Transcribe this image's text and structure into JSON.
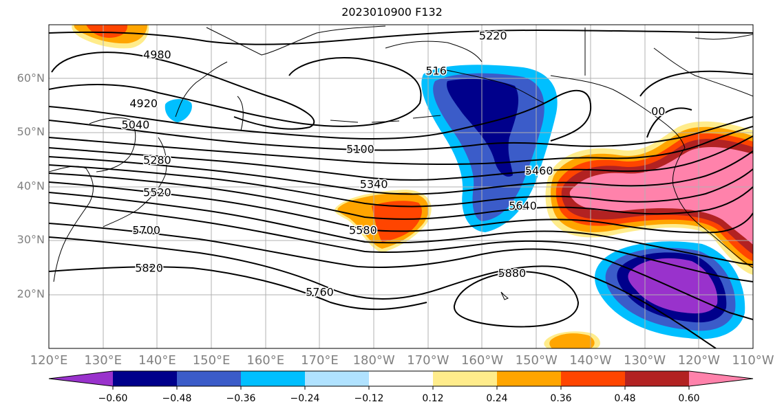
{
  "title": "2023010900 F132",
  "lat_labels": [
    {
      "label": "60°N",
      "lat": 60
    },
    {
      "label": "50°N",
      "lat": 50
    },
    {
      "label": "40°N",
      "lat": 40
    },
    {
      "label": "30°N",
      "lat": 30
    },
    {
      "label": "20°N",
      "lat": 20
    }
  ],
  "lon_labels": [
    {
      "label": "120°E",
      "lon": 120
    },
    {
      "label": "130°E",
      "lon": 130
    },
    {
      "label": "140°E",
      "lon": 140
    },
    {
      "label": "150°E",
      "lon": 150
    },
    {
      "label": "160°E",
      "lon": 160
    },
    {
      "label": "170°E",
      "lon": 170
    },
    {
      "label": "180°W",
      "lon": 180
    },
    {
      "label": "170°W",
      "lon": 190
    },
    {
      "label": "160°W",
      "lon": 200
    },
    {
      "label": "150°W",
      "lon": 210
    },
    {
      "label": "140°W",
      "lon": 220
    },
    {
      "label": "130°W",
      "lon": 230
    },
    {
      "label": "120°W",
      "lon": 240
    },
    {
      "label": "110°W",
      "lon": 250
    }
  ],
  "contour_labels": [
    {
      "text": "5220",
      "lon": 202,
      "lat": 68
    },
    {
      "text": "4980",
      "lon": 140,
      "lat": 64.5
    },
    {
      "text": "516",
      "lon": 191.5,
      "lat": 61.5
    },
    {
      "text": "4920",
      "lon": 137.5,
      "lat": 55.5
    },
    {
      "text": "5040",
      "lon": 136,
      "lat": 51.5
    },
    {
      "text": "5100",
      "lon": 177.5,
      "lat": 47
    },
    {
      "text": "5280",
      "lon": 140,
      "lat": 45
    },
    {
      "text": "5460",
      "lon": 210.5,
      "lat": 43
    },
    {
      "text": "5340",
      "lon": 180,
      "lat": 40.5
    },
    {
      "text": "5520",
      "lon": 140,
      "lat": 39
    },
    {
      "text": "5640",
      "lon": 207.5,
      "lat": 36.5
    },
    {
      "text": "5580",
      "lon": 178,
      "lat": 32
    },
    {
      "text": "5700",
      "lon": 138,
      "lat": 32
    },
    {
      "text": "5820",
      "lon": 138.5,
      "lat": 25
    },
    {
      "text": "5880",
      "lon": 205.5,
      "lat": 24
    },
    {
      "text": "5760",
      "lon": 170,
      "lat": 20.5
    },
    {
      "text": "00",
      "lon": 232.5,
      "lat": 54
    }
  ],
  "colorbar": {
    "colors": [
      "#9932cc",
      "#00008b",
      "#3b5cc9",
      "#00bfff",
      "#b0e2ff",
      "#ffffff",
      "#ffec8b",
      "#ffa500",
      "#ff4500",
      "#b22222",
      "#ff82ab"
    ],
    "ticks": [
      "−0.60",
      "−0.48",
      "−0.36",
      "−0.24",
      "−0.12",
      "0.12",
      "0.24",
      "0.36",
      "0.48",
      "0.60"
    ]
  }
}
